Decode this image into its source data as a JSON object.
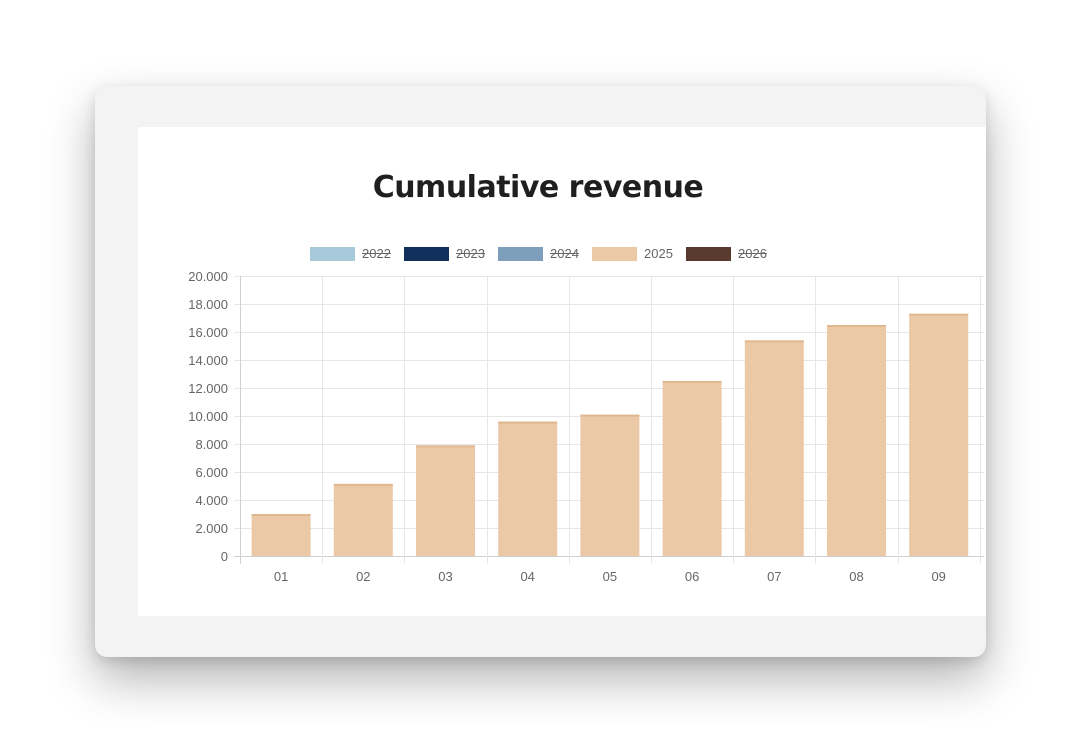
{
  "chart_data": {
    "type": "bar",
    "title": "Cumulative revenue",
    "xlabel": "",
    "ylabel": "",
    "categories": [
      "01",
      "02",
      "03",
      "04",
      "05",
      "06",
      "07",
      "08",
      "09"
    ],
    "ylim": [
      0,
      20000
    ],
    "y_ticks": [
      "0",
      "2.000",
      "4.000",
      "6.000",
      "8.000",
      "10.000",
      "12.000",
      "14.000",
      "16.000",
      "18.000",
      "20.000"
    ],
    "grid": true,
    "legend_position": "top",
    "legend": [
      {
        "label": "2022",
        "color": "#a7c9d9",
        "hidden": true
      },
      {
        "label": "2023",
        "color": "#12305c",
        "hidden": true
      },
      {
        "label": "2024",
        "color": "#7e9fbc",
        "hidden": true
      },
      {
        "label": "2025",
        "color": "#ecc9a6",
        "hidden": false
      },
      {
        "label": "2026",
        "color": "#5a3a2f",
        "hidden": true
      }
    ],
    "series": [
      {
        "name": "2025",
        "color": "#ecc9a6",
        "values": [
          3000,
          5150,
          7900,
          9600,
          10100,
          12500,
          15400,
          16500,
          17300
        ]
      }
    ]
  }
}
